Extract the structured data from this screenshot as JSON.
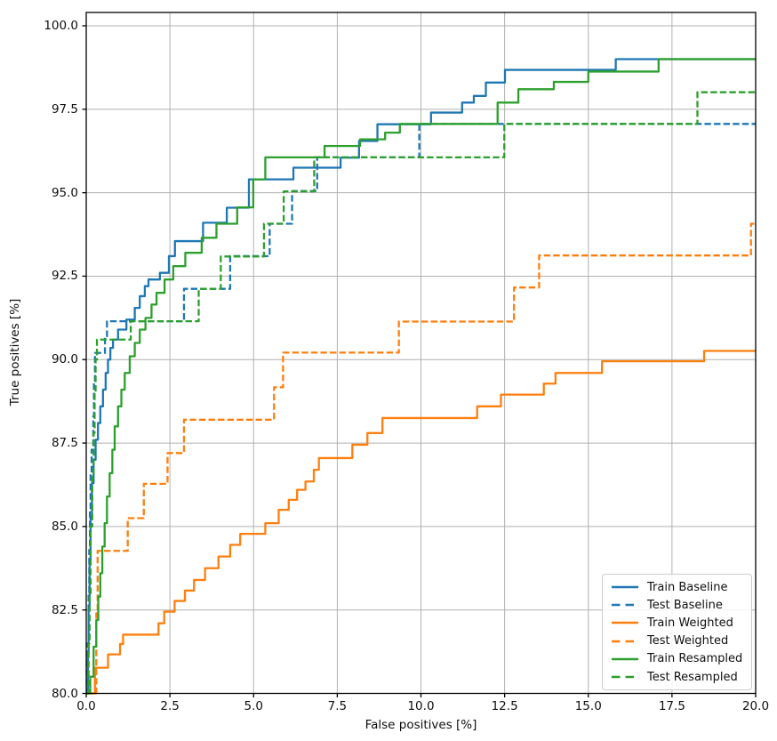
{
  "chart_data": {
    "type": "line",
    "step_mode": "post",
    "title": "",
    "xlabel": "False positives [%]",
    "ylabel": "True positives [%]",
    "xlim": [
      0,
      20
    ],
    "ylim": [
      80,
      100.4
    ],
    "x_ticks": [
      0,
      2.5,
      5,
      7.5,
      10,
      12.5,
      15,
      17.5,
      20
    ],
    "x_tick_labels": [
      "0.0",
      "2.5",
      "5.0",
      "7.5",
      "10.0",
      "12.5",
      "15.0",
      "17.5",
      "20.0"
    ],
    "y_ticks": [
      80,
      82.5,
      85,
      87.5,
      90,
      92.5,
      95,
      97.5,
      100
    ],
    "y_tick_labels": [
      "80.0",
      "82.5",
      "85.0",
      "87.5",
      "90.0",
      "92.5",
      "95.0",
      "97.5",
      "100.0"
    ],
    "grid": true,
    "grid_color": "#b0b0b0",
    "spine_color": "#000000",
    "legend_position": "lower right",
    "series": [
      {
        "name": "Train Baseline",
        "color": "#1f77b4",
        "dash": "solid",
        "points": [
          [
            0,
            80
          ],
          [
            0.05,
            81.2
          ],
          [
            0.07,
            82.5
          ],
          [
            0.1,
            84.0
          ],
          [
            0.13,
            85.3
          ],
          [
            0.17,
            86.3
          ],
          [
            0.22,
            87.0
          ],
          [
            0.28,
            87.6
          ],
          [
            0.35,
            88.1
          ],
          [
            0.42,
            88.6
          ],
          [
            0.5,
            89.1
          ],
          [
            0.58,
            89.6
          ],
          [
            0.65,
            90.0
          ],
          [
            0.72,
            90.35
          ],
          [
            0.8,
            90.6
          ],
          [
            0.95,
            90.9
          ],
          [
            1.2,
            91.2
          ],
          [
            1.45,
            91.55
          ],
          [
            1.6,
            91.9
          ],
          [
            1.75,
            92.2
          ],
          [
            1.86,
            92.4
          ],
          [
            2.2,
            92.6
          ],
          [
            2.47,
            93.1
          ],
          [
            2.65,
            93.55
          ],
          [
            3.49,
            94.1
          ],
          [
            4.2,
            94.55
          ],
          [
            4.86,
            95.4
          ],
          [
            6.19,
            95.75
          ],
          [
            7.6,
            96.05
          ],
          [
            8.15,
            96.55
          ],
          [
            8.7,
            97.05
          ],
          [
            10.3,
            97.4
          ],
          [
            11.23,
            97.7
          ],
          [
            11.58,
            97.9
          ],
          [
            11.94,
            98.3
          ],
          [
            12.51,
            98.68
          ],
          [
            15.82,
            99.0
          ]
        ]
      },
      {
        "name": "Test Baseline",
        "color": "#1f77b4",
        "dash": "dashed",
        "points": [
          [
            0,
            80
          ],
          [
            0.04,
            81.5
          ],
          [
            0.07,
            83.0
          ],
          [
            0.09,
            84.3
          ],
          [
            0.11,
            85.5
          ],
          [
            0.13,
            86.6
          ],
          [
            0.16,
            87.3
          ],
          [
            0.21,
            88.3
          ],
          [
            0.23,
            89.3
          ],
          [
            0.26,
            90.2
          ],
          [
            0.56,
            90.7
          ],
          [
            0.62,
            91.15
          ],
          [
            2.92,
            92.12
          ],
          [
            4.3,
            93.1
          ],
          [
            5.48,
            94.07
          ],
          [
            6.15,
            95.05
          ],
          [
            6.9,
            96.06
          ],
          [
            9.95,
            97.06
          ]
        ]
      },
      {
        "name": "Train Weighted",
        "color": "#ff7f0e",
        "dash": "solid",
        "points": [
          [
            0,
            80
          ],
          [
            0.26,
            80.77
          ],
          [
            0.65,
            81.17
          ],
          [
            1.01,
            81.48
          ],
          [
            1.1,
            81.76
          ],
          [
            2.16,
            82.1
          ],
          [
            2.33,
            82.45
          ],
          [
            2.64,
            82.77
          ],
          [
            2.95,
            83.08
          ],
          [
            3.22,
            83.4
          ],
          [
            3.55,
            83.75
          ],
          [
            3.95,
            84.1
          ],
          [
            4.3,
            84.45
          ],
          [
            4.6,
            84.78
          ],
          [
            5.35,
            85.1
          ],
          [
            5.75,
            85.5
          ],
          [
            6.05,
            85.8
          ],
          [
            6.3,
            86.1
          ],
          [
            6.55,
            86.35
          ],
          [
            6.8,
            86.7
          ],
          [
            6.95,
            87.05
          ],
          [
            7.95,
            87.45
          ],
          [
            8.4,
            87.8
          ],
          [
            8.85,
            88.25
          ],
          [
            11.68,
            88.6
          ],
          [
            12.39,
            88.95
          ],
          [
            13.67,
            89.28
          ],
          [
            14.02,
            89.6
          ],
          [
            15.41,
            89.95
          ],
          [
            18.46,
            90.26
          ]
        ]
      },
      {
        "name": "Test Weighted",
        "color": "#ff7f0e",
        "dash": "dashed",
        "points": [
          [
            0,
            80
          ],
          [
            0.3,
            82.4
          ],
          [
            0.34,
            84.27
          ],
          [
            1.24,
            85.25
          ],
          [
            1.72,
            86.28
          ],
          [
            2.43,
            87.2
          ],
          [
            2.92,
            88.2
          ],
          [
            5.61,
            89.17
          ],
          [
            5.88,
            90.21
          ],
          [
            9.34,
            91.14
          ],
          [
            12.78,
            92.16
          ],
          [
            13.53,
            93.12
          ],
          [
            19.86,
            94.07
          ]
        ]
      },
      {
        "name": "Train Resampled",
        "color": "#2ca02c",
        "dash": "solid",
        "points": [
          [
            0,
            80
          ],
          [
            0.12,
            80.5
          ],
          [
            0.22,
            81.4
          ],
          [
            0.3,
            82.2
          ],
          [
            0.36,
            82.9
          ],
          [
            0.42,
            83.6
          ],
          [
            0.48,
            84.4
          ],
          [
            0.55,
            85.1
          ],
          [
            0.62,
            85.9
          ],
          [
            0.7,
            86.6
          ],
          [
            0.78,
            87.3
          ],
          [
            0.85,
            88.0
          ],
          [
            0.95,
            88.6
          ],
          [
            1.05,
            89.1
          ],
          [
            1.15,
            89.6
          ],
          [
            1.3,
            90.1
          ],
          [
            1.45,
            90.5
          ],
          [
            1.6,
            90.9
          ],
          [
            1.77,
            91.25
          ],
          [
            1.95,
            91.65
          ],
          [
            2.1,
            92.0
          ],
          [
            2.34,
            92.4
          ],
          [
            2.6,
            92.8
          ],
          [
            2.96,
            93.2
          ],
          [
            3.45,
            93.65
          ],
          [
            3.89,
            94.07
          ],
          [
            4.51,
            94.56
          ],
          [
            4.99,
            95.4
          ],
          [
            5.35,
            96.06
          ],
          [
            7.12,
            96.4
          ],
          [
            8.18,
            96.6
          ],
          [
            8.93,
            96.8
          ],
          [
            9.37,
            97.06
          ],
          [
            12.29,
            97.7
          ],
          [
            12.91,
            98.1
          ],
          [
            13.97,
            98.32
          ],
          [
            15.0,
            98.63
          ],
          [
            17.1,
            99.0
          ]
        ]
      },
      {
        "name": "Test Resampled",
        "color": "#2ca02c",
        "dash": "dashed",
        "points": [
          [
            0,
            80
          ],
          [
            0.07,
            81.5
          ],
          [
            0.1,
            83.0
          ],
          [
            0.13,
            85.0
          ],
          [
            0.18,
            86.5
          ],
          [
            0.22,
            87.8
          ],
          [
            0.25,
            89.0
          ],
          [
            0.28,
            90.0
          ],
          [
            0.32,
            90.6
          ],
          [
            1.33,
            91.15
          ],
          [
            3.36,
            92.12
          ],
          [
            4.02,
            93.09
          ],
          [
            5.31,
            94.07
          ],
          [
            5.9,
            95.04
          ],
          [
            6.81,
            96.06
          ],
          [
            12.49,
            97.06
          ],
          [
            18.26,
            98.01
          ]
        ]
      }
    ]
  }
}
